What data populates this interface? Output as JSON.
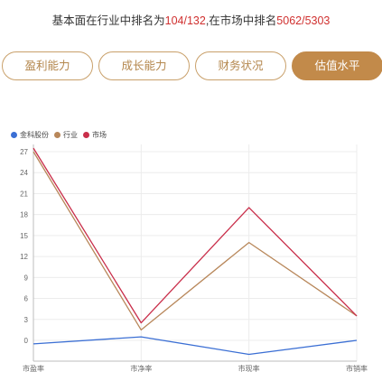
{
  "summary": {
    "prefix": "基本面在行业中排名为",
    "industry_rank": "104/132",
    "middle": ",在市场中排名",
    "market_rank": "5062/5303"
  },
  "tabs": [
    {
      "label": "盈利能力",
      "active": false
    },
    {
      "label": "成长能力",
      "active": false
    },
    {
      "label": "财务状况",
      "active": false
    },
    {
      "label": "估值水平",
      "active": true
    }
  ],
  "colors": {
    "accent": "#c28a4a",
    "highlight": "#d0302f",
    "company": "#3b6fd4",
    "industry": "#b8875a",
    "market": "#c92e4a"
  },
  "chart_data": {
    "type": "line",
    "categories": [
      "市盈率",
      "市净率",
      "市现率",
      "市销率"
    ],
    "series": [
      {
        "name": "金科股份",
        "color": "#3b6fd4",
        "values": [
          -0.5,
          0.5,
          -2.0,
          0.0
        ]
      },
      {
        "name": "行业",
        "color": "#b8875a",
        "values": [
          27.0,
          1.5,
          14.0,
          3.5
        ]
      },
      {
        "name": "市场",
        "color": "#c92e4a",
        "values": [
          27.5,
          2.5,
          19.0,
          3.5
        ]
      }
    ],
    "yticks": [
      0,
      3,
      6,
      9,
      12,
      15,
      18,
      21,
      24,
      27
    ],
    "ylim": [
      -3,
      28
    ],
    "grid": true,
    "legend": "top-left"
  }
}
